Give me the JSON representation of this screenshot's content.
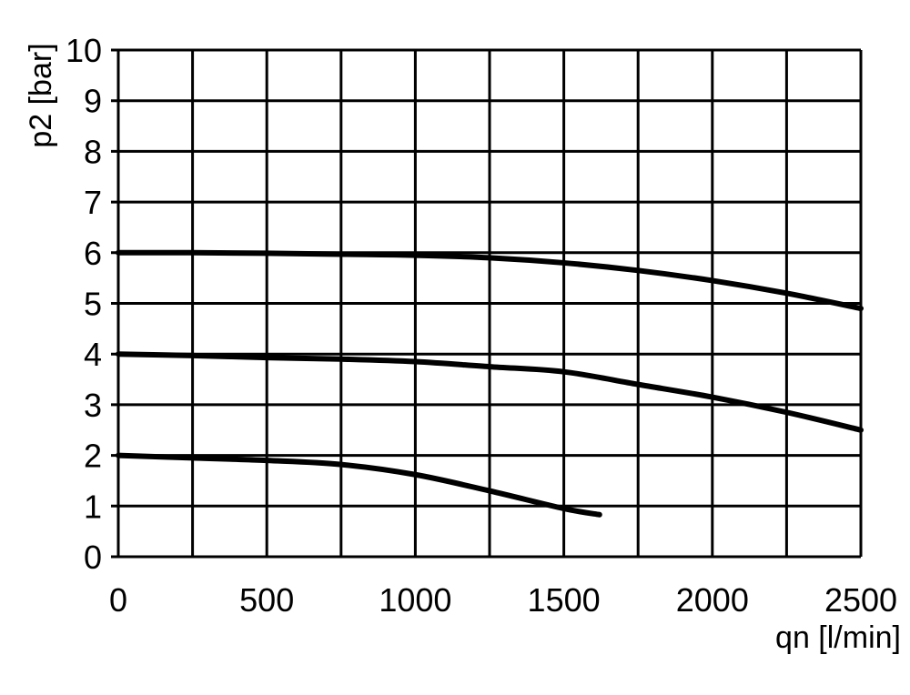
{
  "chart_data": {
    "type": "line",
    "title": "",
    "xlabel": "qn [l/min]",
    "ylabel": "p2 [bar]",
    "xlim": [
      0,
      2500
    ],
    "ylim": [
      0,
      10
    ],
    "grid": true,
    "x_grid_step": 250,
    "y_grid_step": 1,
    "x_ticks": [
      "0",
      "500",
      "1000",
      "1500",
      "2000",
      "2500"
    ],
    "x_tick_values": [
      0,
      500,
      1000,
      1500,
      2000,
      2500
    ],
    "y_ticks": [
      "0",
      "1",
      "2",
      "3",
      "4",
      "5",
      "6",
      "7",
      "8",
      "9",
      "10"
    ],
    "y_tick_values": [
      0,
      1,
      2,
      3,
      4,
      5,
      6,
      7,
      8,
      9,
      10
    ],
    "line_color": "#000000",
    "series": [
      {
        "x": [
          0,
          250,
          500,
          750,
          1000,
          1250,
          1500,
          1750,
          2000,
          2250,
          2500
        ],
        "y": [
          6.0,
          6.0,
          5.99,
          5.97,
          5.95,
          5.9,
          5.8,
          5.65,
          5.45,
          5.2,
          4.9
        ]
      },
      {
        "x": [
          0,
          250,
          500,
          750,
          1000,
          1250,
          1500,
          1750,
          2000,
          2250,
          2500
        ],
        "y": [
          4.0,
          3.97,
          3.93,
          3.9,
          3.85,
          3.75,
          3.65,
          3.4,
          3.15,
          2.85,
          2.5
        ]
      },
      {
        "x": [
          0,
          250,
          500,
          750,
          1000,
          1250,
          1500,
          1620
        ],
        "y": [
          2.0,
          1.95,
          1.9,
          1.82,
          1.62,
          1.3,
          0.95,
          0.83
        ]
      }
    ]
  }
}
